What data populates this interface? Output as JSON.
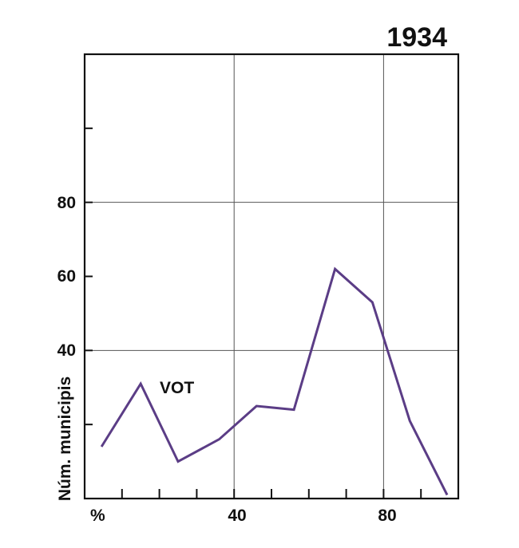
{
  "chart_data": {
    "type": "line",
    "title": "1934",
    "xlabel": "%",
    "ylabel": "Núm. municipis",
    "xlim": [
      0,
      100
    ],
    "ylim": [
      0,
      120
    ],
    "x_ticks": [
      10,
      20,
      30,
      40,
      50,
      60,
      70,
      80,
      90
    ],
    "x_tick_labels": [
      {
        "value": 40,
        "label": "40"
      },
      {
        "value": 80,
        "label": "80"
      }
    ],
    "y_ticks": [
      20,
      40,
      60,
      80,
      100
    ],
    "y_tick_labels": [
      {
        "value": 40,
        "label": "40"
      },
      {
        "value": 60,
        "label": "60"
      },
      {
        "value": 80,
        "label": "80"
      }
    ],
    "grid_x": [
      40,
      80
    ],
    "grid_y": [
      40,
      80
    ],
    "grid": true,
    "series": [
      {
        "name": "VOT",
        "color": "#5b3d86",
        "x": [
          4.5,
          15,
          25,
          36,
          46,
          56,
          67,
          77,
          87,
          97
        ],
        "y": [
          14,
          31,
          10,
          16,
          25,
          24,
          62,
          53,
          21,
          1
        ]
      }
    ]
  }
}
